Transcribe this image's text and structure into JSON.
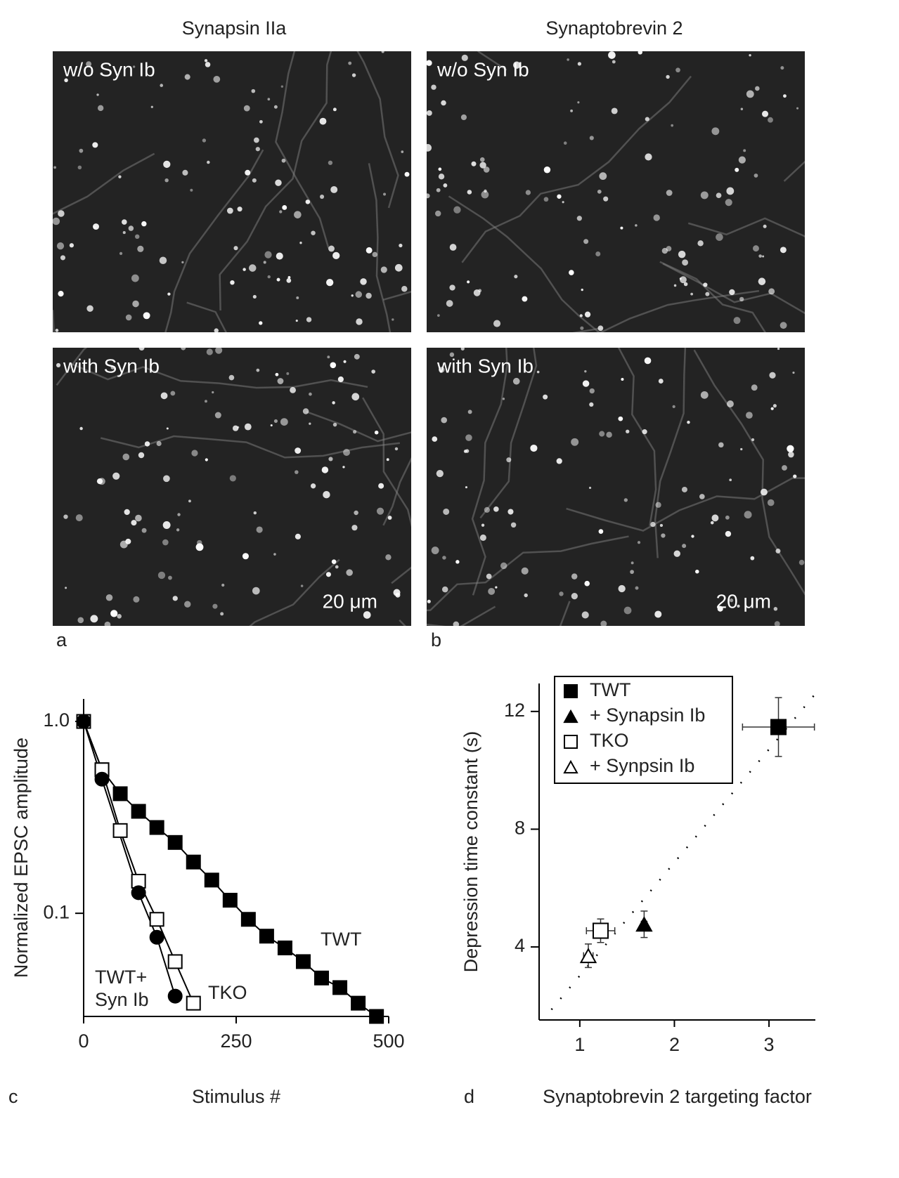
{
  "figure": {
    "column_titles": [
      "Synapsin IIa",
      "Synaptobrevin 2"
    ],
    "micrographs": [
      {
        "label": "w/o Syn Ib"
      },
      {
        "label": "w/o Syn Ib"
      },
      {
        "label": "with Syn Ib",
        "scale_bar": "20 μm"
      },
      {
        "label": "with Syn Ib",
        "scale_bar": "20 μm"
      }
    ],
    "panel_letters": [
      "a",
      "b",
      "c",
      "d"
    ]
  },
  "chart_data": [
    {
      "type": "line",
      "log_y": true,
      "x_label": "Stimulus #",
      "y_label": "Normalized EPSC amplitude",
      "xlim": [
        0,
        500
      ],
      "xticks": [
        0,
        250,
        500
      ],
      "ylim": [
        0.029,
        1.31
      ],
      "yticks": [
        0.1,
        {
          "value": 1,
          "label": "1.0"
        }
      ],
      "series": [
        {
          "name": "TWT",
          "color": "#000000",
          "marker": "square",
          "filled": true,
          "x": [
            0,
            30,
            60,
            90,
            120,
            150,
            180,
            210,
            240,
            270,
            300,
            330,
            360,
            390,
            420,
            450,
            480
          ],
          "values": [
            1.0,
            0.56,
            0.42,
            0.34,
            0.28,
            0.234,
            0.185,
            0.149,
            0.117,
            0.093,
            0.076,
            0.066,
            0.056,
            0.046,
            0.041,
            0.034,
            0.029
          ]
        },
        {
          "name": "TKO",
          "color": "#000000",
          "marker": "square",
          "filled": false,
          "x": [
            0,
            30,
            60,
            90,
            120,
            150,
            180
          ],
          "values": [
            1.0,
            0.56,
            0.27,
            0.147,
            0.093,
            0.056,
            0.034
          ]
        },
        {
          "name": "TWT+ Syn Ib",
          "color": "#000000",
          "marker": "circle",
          "filled": true,
          "x": [
            0,
            30,
            90,
            120,
            150
          ],
          "values": [
            1.0,
            0.5,
            0.128,
            0.075,
            0.037
          ]
        }
      ]
    },
    {
      "type": "scatter",
      "x_label": "Synaptobrevin 2 targeting factor",
      "y_label": "Depression time constant (s)",
      "xlim": [
        0.57,
        3.49
      ],
      "xticks": [
        1,
        2,
        3
      ],
      "ylim": [
        1.52,
        12.95
      ],
      "yticks": [
        4,
        8,
        12
      ],
      "legend": "top-left",
      "fit_line": {
        "x": [
          0.7,
          3.49
        ],
        "values": [
          1.87,
          12.6
        ],
        "style": "dotted"
      },
      "series": [
        {
          "name": "TWT",
          "color": "#000000",
          "marker": "square",
          "filled": true,
          "x": [
            3.1
          ],
          "values": [
            11.47
          ],
          "xerr": [
            0.38
          ],
          "yerr": [
            1.0
          ]
        },
        {
          "name": "+ Synapsin Ib",
          "color": "#000000",
          "marker": "triangle",
          "filled": true,
          "x": [
            1.68
          ],
          "values": [
            4.77
          ],
          "xerr": [
            0.03
          ],
          "yerr": [
            0.45
          ]
        },
        {
          "name": "TKO",
          "color": "#000000",
          "marker": "square",
          "filled": false,
          "x": [
            1.22
          ],
          "values": [
            4.55
          ],
          "xerr": [
            0.15
          ],
          "yerr": [
            0.4
          ]
        },
        {
          "name": "+ Synpsin Ib",
          "color": "#000000",
          "marker": "triangle",
          "filled": false,
          "x": [
            1.09
          ],
          "values": [
            3.7
          ],
          "xerr": [
            0.05
          ],
          "yerr": [
            0.4
          ]
        }
      ]
    }
  ]
}
